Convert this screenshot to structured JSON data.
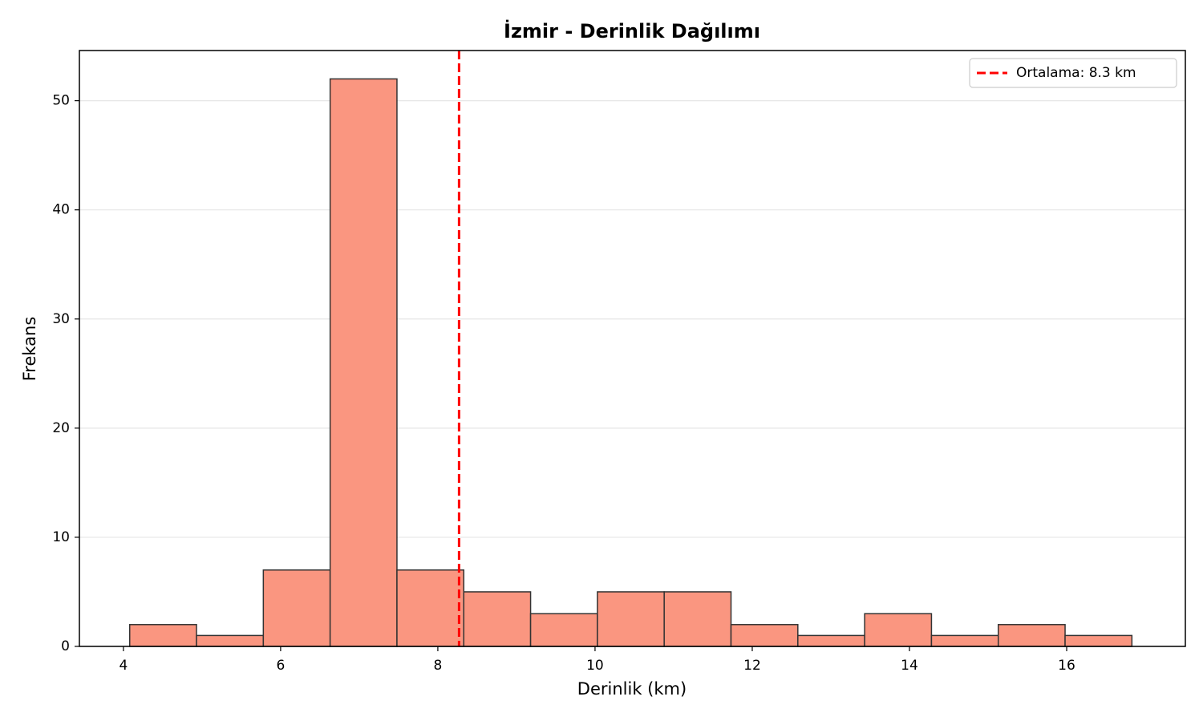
{
  "chart_data": {
    "type": "histogram",
    "title": "İzmir - Derinlik Dağılımı",
    "x_label": "Derinlik (km)",
    "y_label": "Frekans",
    "bins": [
      4.08,
      4.93,
      5.78,
      6.63,
      7.48,
      8.33,
      9.18,
      10.03,
      10.88,
      11.73,
      12.58,
      13.43,
      14.28,
      15.13,
      15.98,
      16.83
    ],
    "values": [
      2,
      1,
      7,
      52,
      7,
      5,
      3,
      5,
      5,
      2,
      1,
      3,
      1,
      2,
      1
    ],
    "color": "#fa9680",
    "edge_color": "#333333",
    "mean_line": {
      "value": 8.27,
      "label": "Ortalama: 8.3 km",
      "color": "#ff0000"
    },
    "xlim": [
      3.44,
      17.51
    ],
    "xticks": [
      4,
      6,
      8,
      10,
      12,
      14,
      16
    ],
    "ylim": [
      0,
      54.6
    ],
    "yticks": [
      0,
      10,
      20,
      30,
      40,
      50
    ],
    "grid": true,
    "legend_position": "upper right"
  }
}
